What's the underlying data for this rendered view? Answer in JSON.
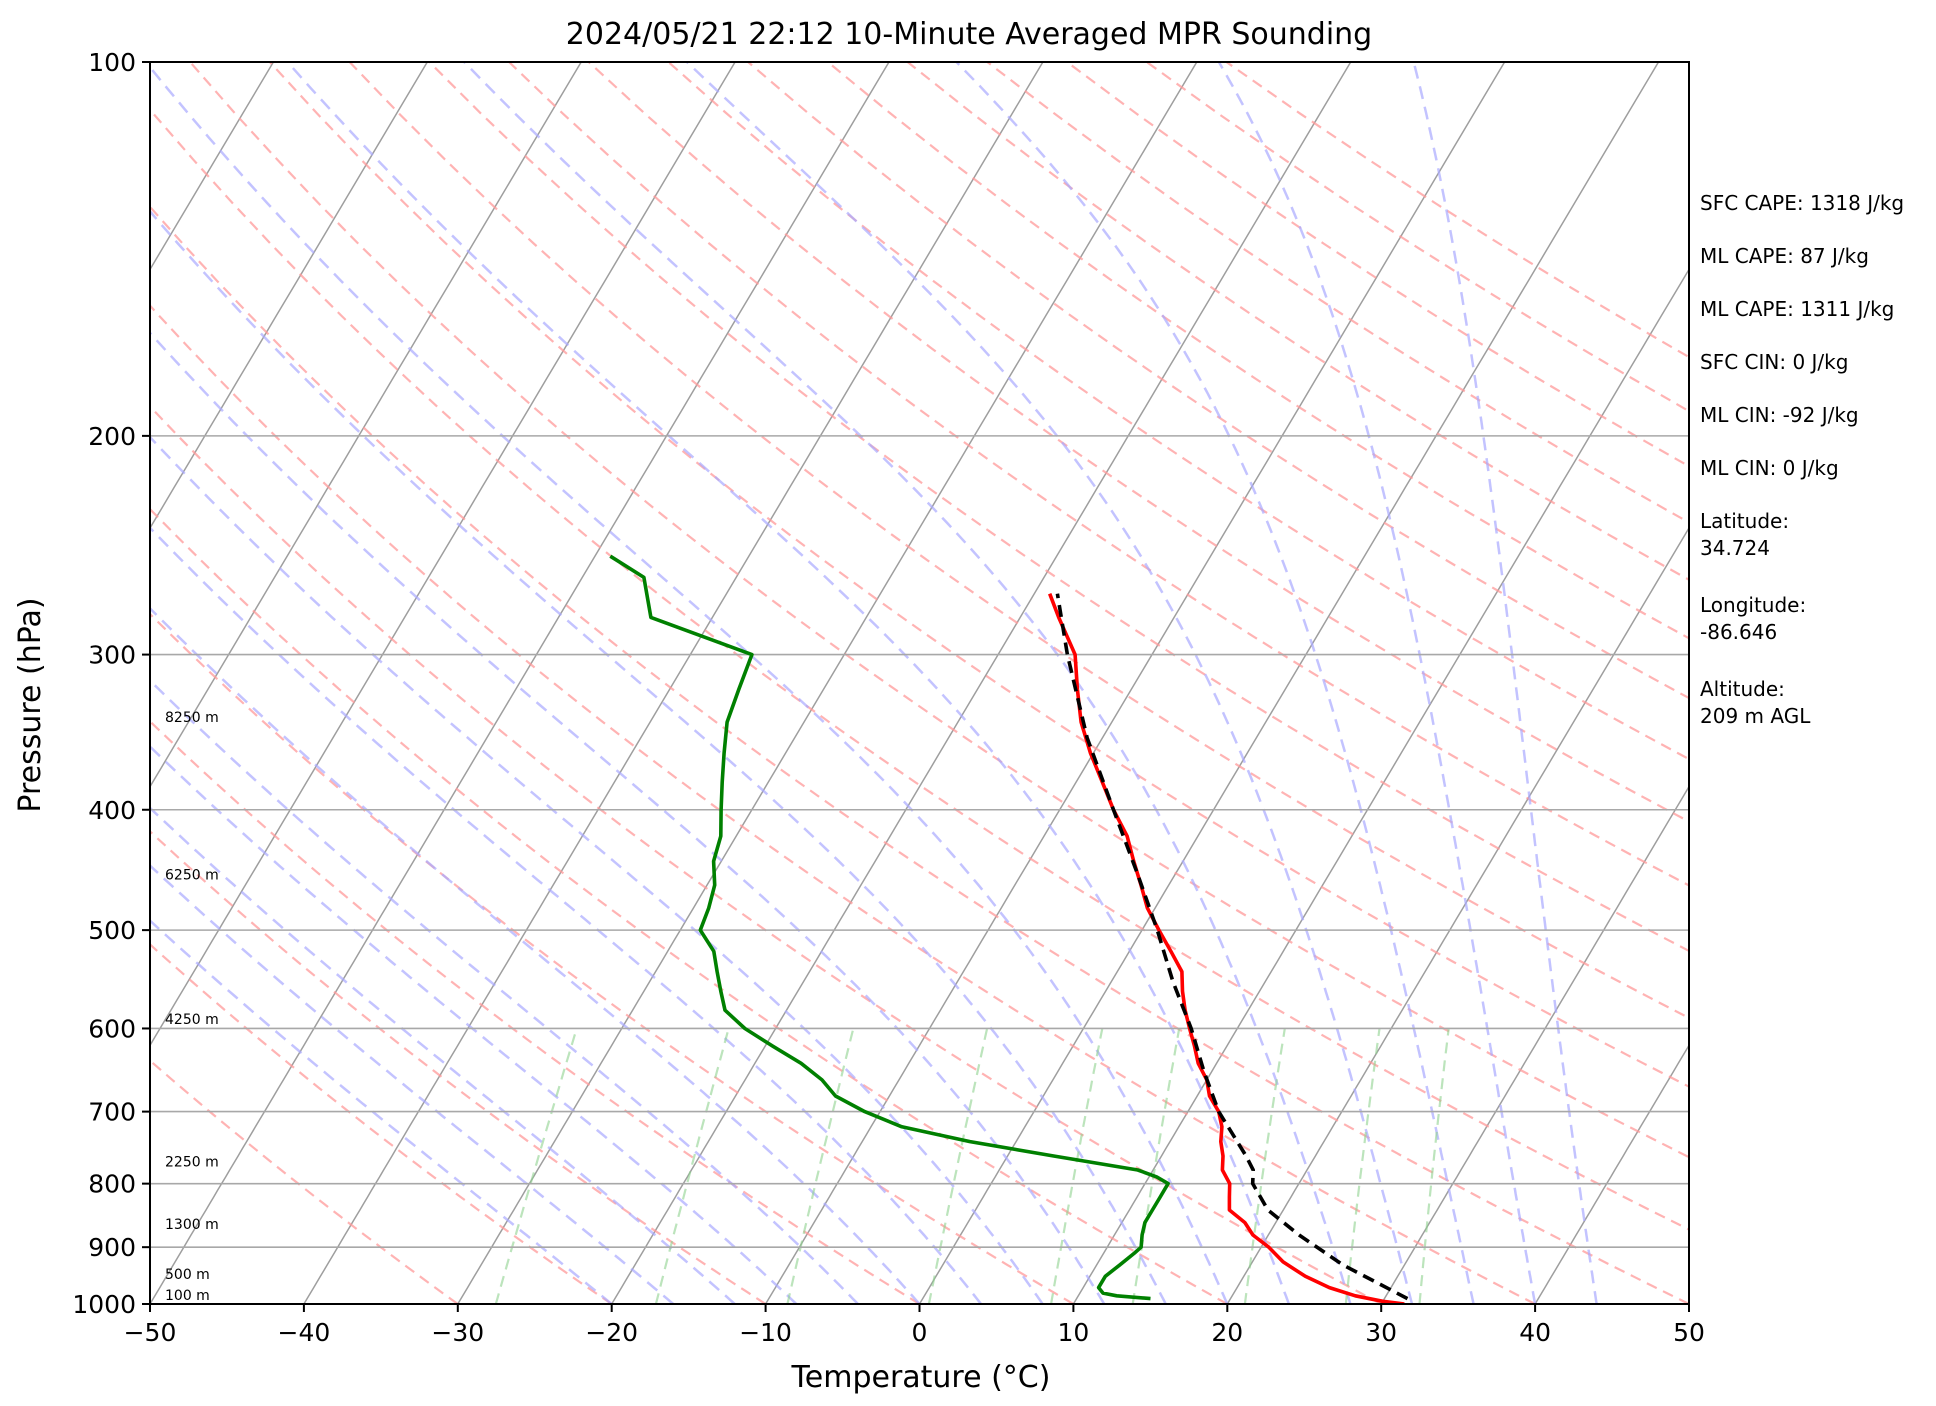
{
  "chart_data": {
    "type": "line",
    "subtype": "skew-T log-P",
    "title": "2024/05/21 22:12 10-Minute Averaged MPR Sounding",
    "xlabel": "Temperature (°C)",
    "ylabel": "Pressure (hPa)",
    "xlim": [
      -50,
      50
    ],
    "ylim": [
      1000,
      100
    ],
    "y_scale": "log",
    "x_ticks": [
      "−50",
      "−40",
      "−30",
      "−20",
      "−10",
      "0",
      "10",
      "20",
      "30",
      "40",
      "50"
    ],
    "y_ticks": [
      "100",
      "200",
      "300",
      "400",
      "500",
      "600",
      "700",
      "800",
      "900",
      "1000"
    ],
    "grid": "horizontal lines at labeled pressures",
    "background_lines": [
      "dry adiabats (gray)",
      "moist adiabats (blue dashed)",
      "mixing ratio lines (green dashed)",
      "isotherms (red dashed)"
    ],
    "series": [
      {
        "color": "#ff0000",
        "style": "solid",
        "points": [
          [
            1000,
            31.5
          ],
          [
            995,
            30
          ],
          [
            985,
            28
          ],
          [
            970,
            26
          ],
          [
            950,
            24
          ],
          [
            925,
            22
          ],
          [
            900,
            20.5
          ],
          [
            880,
            19
          ],
          [
            860,
            18
          ],
          [
            840,
            16.5
          ],
          [
            820,
            16
          ],
          [
            800,
            15.5
          ],
          [
            780,
            14.5
          ],
          [
            760,
            14
          ],
          [
            740,
            13.3
          ],
          [
            720,
            12.8
          ],
          [
            700,
            12
          ],
          [
            680,
            10.8
          ],
          [
            660,
            10
          ],
          [
            640,
            8.8
          ],
          [
            620,
            7.9
          ],
          [
            600,
            6.9
          ],
          [
            580,
            5.9
          ],
          [
            560,
            5
          ],
          [
            540,
            4.2
          ],
          [
            520,
            2.7
          ],
          [
            500,
            1.1
          ],
          [
            480,
            -0.5
          ],
          [
            460,
            -1.8
          ],
          [
            440,
            -3.2
          ],
          [
            420,
            -4.6
          ],
          [
            400,
            -6.5
          ],
          [
            380,
            -8.3
          ],
          [
            360,
            -10.2
          ],
          [
            340,
            -12
          ],
          [
            320,
            -13.5
          ],
          [
            300,
            -15
          ],
          [
            280,
            -17.5
          ],
          [
            268,
            -19
          ]
        ]
      },
      {
        "color": "#008000",
        "style": "solid",
        "points": [
          [
            990,
            14.8
          ],
          [
            985,
            12.5
          ],
          [
            980,
            11.5
          ],
          [
            970,
            11
          ],
          [
            950,
            11
          ],
          [
            930,
            11.5
          ],
          [
            910,
            12
          ],
          [
            900,
            12.2
          ],
          [
            880,
            11.8
          ],
          [
            860,
            11.5
          ],
          [
            840,
            11.5
          ],
          [
            820,
            11.5
          ],
          [
            800,
            11.5
          ],
          [
            790,
            10.5
          ],
          [
            780,
            9
          ],
          [
            760,
            3
          ],
          [
            740,
            -3
          ],
          [
            720,
            -8
          ],
          [
            700,
            -11
          ],
          [
            680,
            -13.5
          ],
          [
            660,
            -15
          ],
          [
            640,
            -17
          ],
          [
            620,
            -19.5
          ],
          [
            600,
            -22
          ],
          [
            580,
            -24
          ],
          [
            560,
            -25
          ],
          [
            540,
            -26
          ],
          [
            520,
            -27
          ],
          [
            500,
            -28.7
          ],
          [
            480,
            -29
          ],
          [
            460,
            -29.5
          ],
          [
            440,
            -30.5
          ],
          [
            420,
            -31
          ],
          [
            400,
            -32
          ],
          [
            380,
            -33
          ],
          [
            360,
            -34
          ],
          [
            340,
            -35
          ],
          [
            320,
            -35.5
          ],
          [
            300,
            -36
          ],
          [
            280,
            -44
          ],
          [
            260,
            -46
          ],
          [
            250,
            -49
          ]
        ]
      },
      {
        "color": "#000000",
        "style": "dashed",
        "points": [
          [
            990,
            31.5
          ],
          [
            930,
            26
          ],
          [
            880,
            22
          ],
          [
            840,
            19
          ],
          [
            800,
            17
          ],
          [
            780,
            16.5
          ],
          [
            760,
            15.5
          ],
          [
            700,
            12
          ],
          [
            650,
            9.5
          ],
          [
            600,
            7
          ],
          [
            550,
            4
          ],
          [
            500,
            1
          ],
          [
            450,
            -2.5
          ],
          [
            400,
            -6.5
          ],
          [
            350,
            -11
          ],
          [
            300,
            -15.5
          ],
          [
            268,
            -18.5
          ]
        ]
      }
    ],
    "height_labels": [
      {
        "text": "100 m",
        "p": 1000
      },
      {
        "text": "500 m",
        "p": 955
      },
      {
        "text": "1300 m",
        "p": 870
      },
      {
        "text": "2250 m",
        "p": 775
      },
      {
        "text": "4250 m",
        "p": 595
      },
      {
        "text": "6250 m",
        "p": 455
      },
      {
        "text": "8250 m",
        "p": 340
      }
    ],
    "annotations": [
      "SFC CAPE: 1318 J/kg",
      "ML CAPE: 87 J/kg",
      "ML CAPE: 1311 J/kg",
      "SFC CIN: 0 J/kg",
      "ML CIN: -92 J/kg",
      "ML CIN: 0 J/kg",
      "Latitude:\n34.724",
      "Longitude:\n-86.646",
      "Altitude:\n209 m AGL"
    ]
  }
}
